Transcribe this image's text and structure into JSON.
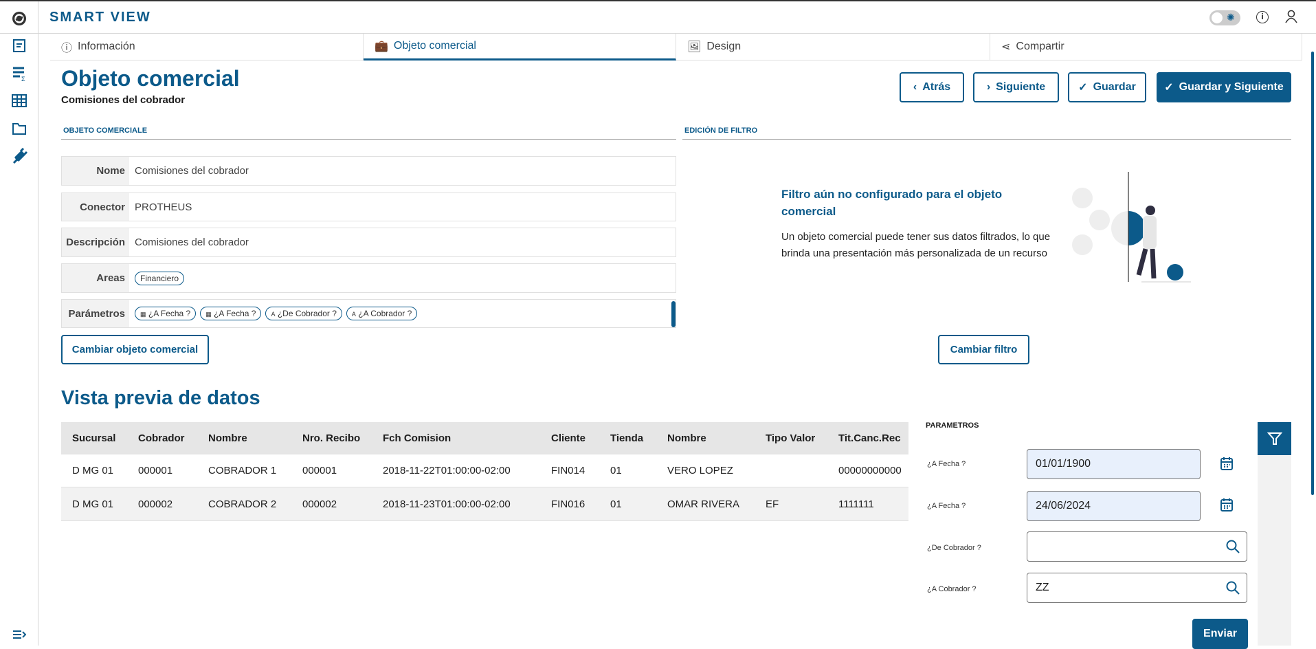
{
  "app": {
    "title": "SMART VIEW"
  },
  "colors": {
    "primary": "#0c5a8a",
    "date_bg": "#e8f0fc"
  },
  "sidebar": {
    "items": [
      {
        "icon": "report-icon"
      },
      {
        "icon": "sum-report-icon"
      },
      {
        "icon": "table-icon"
      },
      {
        "icon": "folder-icon"
      },
      {
        "icon": "plug-icon"
      }
    ],
    "collapse_icon": "expand-menu-icon"
  },
  "header": {
    "icons": [
      "theme-toggle",
      "info-icon",
      "user-icon"
    ]
  },
  "tabs": [
    {
      "label": "Información",
      "icon": "info-icon"
    },
    {
      "label": "Objeto comercial",
      "icon": "briefcase-icon",
      "active": true
    },
    {
      "label": "Design",
      "icon": "image-icon"
    },
    {
      "label": "Compartir",
      "icon": "share-icon"
    }
  ],
  "page": {
    "title": "Objeto comercial",
    "subtitle": "Comisiones del cobrador"
  },
  "actions": {
    "back": "Atrás",
    "next": "Siguiente",
    "save": "Guardar",
    "save_next": "Guardar y Siguiente"
  },
  "object_section": {
    "heading": "OBJETO COMERCIALE",
    "fields": {
      "name_label": "Nome",
      "name": "Comisiones del cobrador",
      "connector_label": "Conector",
      "connector": "PROTHEUS",
      "description_label": "Descripción",
      "description": "Comisiones del cobrador",
      "areas_label": "Areas",
      "areas": [
        "Financiero"
      ],
      "params_label": "Parámetros",
      "params": [
        {
          "label": "¿A Fecha ?",
          "glyph": "▦"
        },
        {
          "label": "¿A Fecha ?",
          "glyph": "▦"
        },
        {
          "label": "¿De Cobrador ?",
          "glyph": "A"
        },
        {
          "label": "¿A Cobrador ?",
          "glyph": "A"
        }
      ]
    },
    "change_button": "Cambiar objeto comercial"
  },
  "filter_section": {
    "heading": "EDICIÓN DE FILTRO",
    "empty_title": "Filtro aún no configurado para el objeto comercial",
    "empty_text": "Un objeto comercial puede tener sus datos filtrados, lo que brinda una presentación más personalizada de un recurso",
    "change_button": "Cambiar filtro"
  },
  "preview": {
    "title": "Vista previa de datos",
    "columns": [
      "Sucursal",
      "Cobrador",
      "Nombre",
      "Nro. Recibo",
      "Fch Comision",
      "Cliente",
      "Tienda",
      "Nombre",
      "Tipo Valor",
      "Tit.Canc.Rec"
    ],
    "rows": [
      [
        "D MG 01",
        "000001",
        "COBRADOR 1",
        "000001",
        "2018-11-22T01:00:00-02:00",
        "FIN014",
        "01",
        "VERO LOPEZ",
        "",
        "00000000000"
      ],
      [
        "D MG 01",
        "000002",
        "COBRADOR 2",
        "000002",
        "2018-11-23T01:00:00-02:00",
        "FIN016",
        "01",
        "OMAR RIVERA",
        "EF",
        "1111111"
      ]
    ]
  },
  "params_panel": {
    "heading": "PARAMETROS",
    "fields": [
      {
        "label": "¿A Fecha ?",
        "value": "01/01/1900"
      },
      {
        "label": "¿A Fecha ?",
        "value": "24/06/2024"
      },
      {
        "label": "¿De Cobrador ?",
        "value": ""
      },
      {
        "label": "¿A Cobrador ?",
        "value": "ZZ"
      }
    ],
    "submit": "Enviar"
  }
}
